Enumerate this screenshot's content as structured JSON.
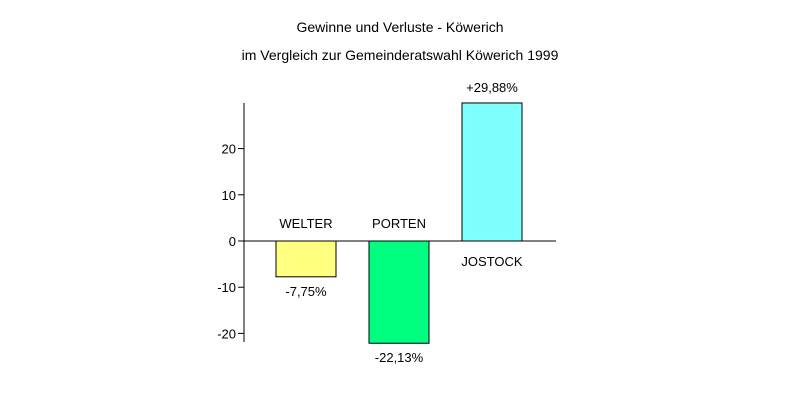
{
  "chart_data": {
    "type": "bar",
    "title": "Gewinne und Verluste - Köwerich",
    "subtitle": "im Vergleich zur Gemeinderatswahl Köwerich 1999",
    "categories": [
      "WELTER",
      "PORTEN",
      "JOSTOCK"
    ],
    "values": [
      -7.75,
      -22.13,
      29.88
    ],
    "value_labels": [
      "-7,75%",
      "-22,13%",
      "+29,88%"
    ],
    "colors": [
      "#ffff80",
      "#00ff80",
      "#80ffff"
    ],
    "y_ticks": [
      20,
      10,
      0,
      -10,
      -20
    ],
    "y_tick_labels": [
      "20",
      "10",
      "0",
      "-10",
      "-20"
    ],
    "ylim": [
      -22,
      30
    ],
    "xlabel": "",
    "ylabel": "",
    "grid": false,
    "legend": "none"
  }
}
